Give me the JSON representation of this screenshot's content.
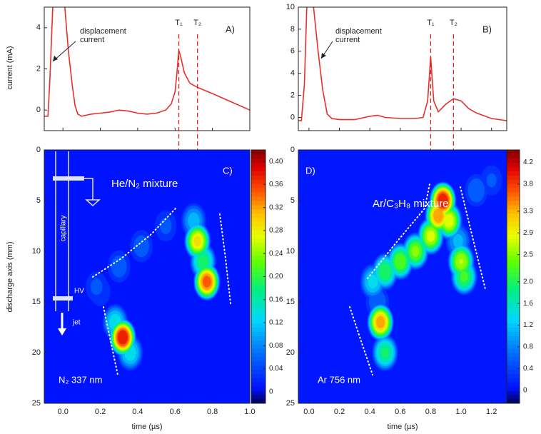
{
  "chart_data": [
    {
      "type": "line",
      "label": "A)",
      "ylabel": "current (mA)",
      "annotation": [
        "displacement",
        "current"
      ],
      "markers": [
        {
          "label": "T₁",
          "value": 0.62
        },
        {
          "label": "T₂",
          "value": 0.72
        }
      ],
      "color": "#e8302a",
      "xlim": [
        -0.1,
        1.0
      ],
      "ylim": [
        -1,
        5
      ],
      "xticks": [
        0,
        0.2,
        0.4,
        0.6,
        0.8,
        1
      ],
      "yticks": [
        0,
        2,
        4
      ],
      "x": [
        -0.1,
        -0.08,
        -0.07,
        -0.05,
        -0.02,
        0.0,
        0.01,
        0.03,
        0.05,
        0.065,
        0.08,
        0.1,
        0.15,
        0.2,
        0.25,
        0.3,
        0.35,
        0.4,
        0.45,
        0.5,
        0.55,
        0.58,
        0.6,
        0.61,
        0.62,
        0.63,
        0.65,
        0.68,
        0.72,
        0.8,
        0.9,
        1.0
      ],
      "values": [
        -0.3,
        -0.3,
        1.5,
        6,
        7,
        6,
        5,
        2.8,
        1.2,
        0.2,
        -0.2,
        -0.3,
        -0.2,
        -0.15,
        -0.1,
        0.0,
        -0.05,
        -0.15,
        -0.2,
        -0.15,
        0.0,
        0.3,
        0.9,
        1.8,
        2.9,
        2.6,
        1.8,
        1.3,
        1.1,
        0.8,
        0.4,
        0.0
      ]
    },
    {
      "type": "line",
      "label": "B)",
      "annotation": [
        "displacement",
        "current"
      ],
      "markers": [
        {
          "label": "T₁",
          "value": 0.8
        },
        {
          "label": "T₂",
          "value": 0.95
        }
      ],
      "color": "#e8302a",
      "xlim": [
        -0.07,
        1.3
      ],
      "ylim": [
        -1.2,
        10
      ],
      "xticks": [
        0,
        0.2,
        0.4,
        0.6,
        0.8,
        1,
        1.2
      ],
      "yticks": [
        0,
        2,
        4,
        6,
        8,
        10
      ],
      "x": [
        -0.07,
        -0.05,
        -0.03,
        -0.01,
        0.01,
        0.03,
        0.06,
        0.09,
        0.12,
        0.15,
        0.2,
        0.3,
        0.4,
        0.45,
        0.5,
        0.6,
        0.7,
        0.75,
        0.78,
        0.8,
        0.82,
        0.85,
        0.9,
        0.95,
        1.0,
        1.05,
        1.1,
        1.2,
        1.3
      ],
      "values": [
        -0.3,
        -0.3,
        3,
        12,
        13,
        10,
        6,
        2.5,
        0.3,
        -0.1,
        -0.2,
        -0.2,
        0.1,
        0.2,
        0.0,
        -0.1,
        -0.1,
        0.0,
        1.5,
        5.5,
        1.5,
        0.5,
        1.2,
        1.7,
        1.5,
        0.8,
        0.4,
        -0.1,
        -0.3
      ]
    },
    {
      "type": "heatmap",
      "label": "C)",
      "ylabel": "discharge axis (mm)",
      "xlabel": "time (µs)",
      "mixture": "He/N₂ mixture",
      "line": "N₂ 337 nm",
      "capillary": "capillary",
      "hv": "HV",
      "jet": "jet",
      "xlim": [
        -0.1,
        1.0
      ],
      "ylim": [
        0,
        25
      ],
      "y_inverted": true,
      "xticks": [
        {
          "value": 0,
          "label": "0.0"
        },
        0.2,
        0.4,
        0.6,
        0.8,
        {
          "value": 1,
          "label": "1.0"
        }
      ],
      "yticks": [
        0,
        5,
        10,
        15,
        20,
        25
      ],
      "x": [
        0.18,
        0.3,
        0.42,
        0.55,
        0.2,
        0.7,
        0.75,
        0.72,
        0.77,
        0.28,
        0.36,
        0.32
      ],
      "y": [
        13.5,
        11.5,
        9.5,
        7.5,
        14,
        7,
        11,
        9,
        13,
        17,
        20,
        18.5
      ],
      "values": [
        0.06,
        0.07,
        0.07,
        0.06,
        0.05,
        0.12,
        0.2,
        0.3,
        0.36,
        0.15,
        0.15,
        0.4
      ],
      "zlim": [
        -0.02,
        0.42
      ],
      "zticks": [
        0,
        0.04,
        0.08,
        0.12,
        0.16,
        {
          "value": 0.2,
          "label": "0.20"
        },
        0.24,
        0.28,
        0.32,
        0.36,
        {
          "value": 0.4,
          "label": "0.40"
        }
      ]
    },
    {
      "type": "heatmap",
      "label": "D)",
      "xlabel": "time (µs)",
      "mixture": "Ar/C₃H₈ mixture",
      "line": "Ar 756 nm",
      "xlim": [
        -0.07,
        1.3
      ],
      "ylim": [
        0,
        25
      ],
      "y_inverted": true,
      "xticks": [
        {
          "value": 0,
          "label": "0.0"
        },
        0.2,
        0.4,
        0.6,
        0.8,
        {
          "value": 1,
          "label": "1.0"
        },
        1.2
      ],
      "yticks": [
        0,
        5,
        10,
        15,
        20,
        25
      ],
      "x": [
        1.1,
        1.2,
        0.45,
        0.98,
        0.42,
        0.5,
        0.6,
        0.7,
        0.8,
        0.92,
        0.85,
        0.88,
        1.02,
        1.0,
        0.5,
        0.47
      ],
      "y": [
        4,
        3,
        15,
        9,
        13,
        12,
        11,
        10,
        8.5,
        7,
        6.5,
        5,
        12.5,
        11,
        20,
        17
      ],
      "values": [
        0.8,
        0.6,
        0.8,
        1.2,
        1.5,
        2.2,
        2.5,
        2.6,
        2.9,
        3.0,
        3.6,
        4.2,
        2.3,
        2.8,
        2.0,
        3.5
      ],
      "zlim": [
        -0.24,
        4.43
      ],
      "zticks": [
        0,
        0.4,
        0.8,
        1.2,
        1.6,
        {
          "value": 2,
          "label": "2.0"
        },
        2.5,
        2.9,
        3.3,
        3.8,
        4.2
      ]
    }
  ]
}
